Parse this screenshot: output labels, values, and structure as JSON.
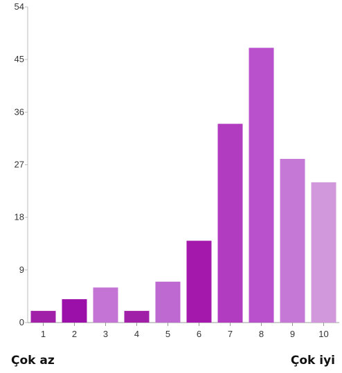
{
  "chart_data": {
    "type": "bar",
    "categories": [
      "1",
      "2",
      "3",
      "4",
      "5",
      "6",
      "7",
      "8",
      "9",
      "10"
    ],
    "values": [
      2,
      4,
      6,
      2,
      7,
      14,
      34,
      47,
      28,
      24
    ],
    "ylim": [
      0,
      54
    ],
    "yticks": [
      "0",
      "9",
      "18",
      "27",
      "36",
      "45",
      "54"
    ],
    "bar_colors": [
      "#a020a8",
      "#9b10a8",
      "#c474d4",
      "#a020a8",
      "#be68d2",
      "#a418ac",
      "#b23cc0",
      "#b950cc",
      "#c678d6",
      "#d298dc"
    ],
    "grid": false,
    "left_label": "Çok az",
    "right_label": "Çok iyi"
  }
}
